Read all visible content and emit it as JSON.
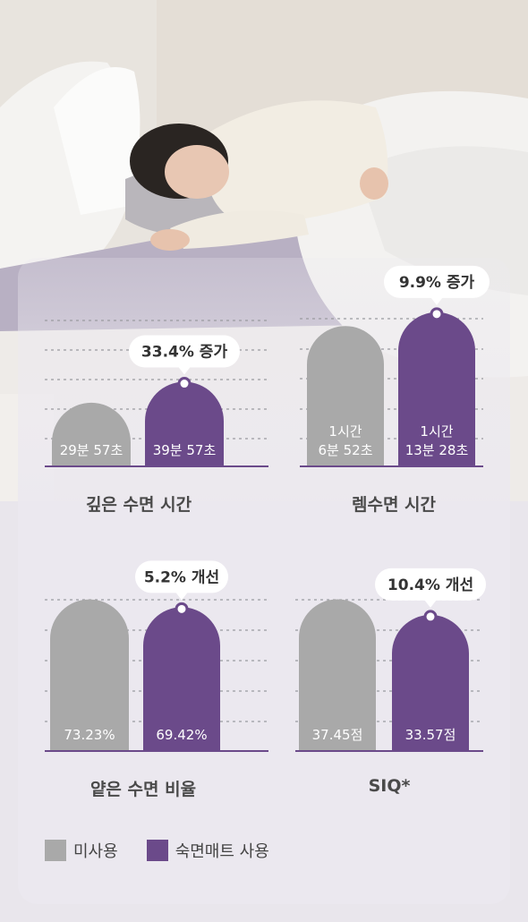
{
  "colors": {
    "unused": "#a9a9a9",
    "used": "#6b4a8a",
    "grid": "#9a9aa0",
    "callout_bg": "#ffffff"
  },
  "legend": {
    "unused_label": "미사용",
    "used_label": "숙면매트 사용"
  },
  "chart_data": [
    {
      "type": "bar",
      "title": "깊은 수면 시간",
      "unit": "minutes",
      "categories": [
        "미사용",
        "숙면매트 사용"
      ],
      "values": [
        29.95,
        39.95
      ],
      "labels": [
        "29분 57초",
        "39분 57초"
      ],
      "callout": "33.4% 증가",
      "grid": true
    },
    {
      "type": "bar",
      "title": "렘수면 시간",
      "unit": "minutes",
      "categories": [
        "미사용",
        "숙면매트 사용"
      ],
      "values": [
        66.87,
        73.47
      ],
      "labels": [
        [
          "1시간",
          "6분 52초"
        ],
        [
          "1시간",
          "13분 28초"
        ]
      ],
      "callout": "9.9% 증가",
      "grid": true
    },
    {
      "type": "bar",
      "title": "얕은 수면 비율",
      "unit": "%",
      "categories": [
        "미사용",
        "숙면매트 사용"
      ],
      "values": [
        73.23,
        69.42
      ],
      "labels": [
        "73.23%",
        "69.42%"
      ],
      "callout": "5.2% 개선",
      "grid": true
    },
    {
      "type": "bar",
      "title": "SIQ*",
      "unit": "점",
      "categories": [
        "미사용",
        "숙면매트 사용"
      ],
      "values": [
        37.45,
        33.57
      ],
      "labels": [
        "37.45점",
        "33.57점"
      ],
      "callout": "10.4% 개선",
      "grid": true
    }
  ]
}
